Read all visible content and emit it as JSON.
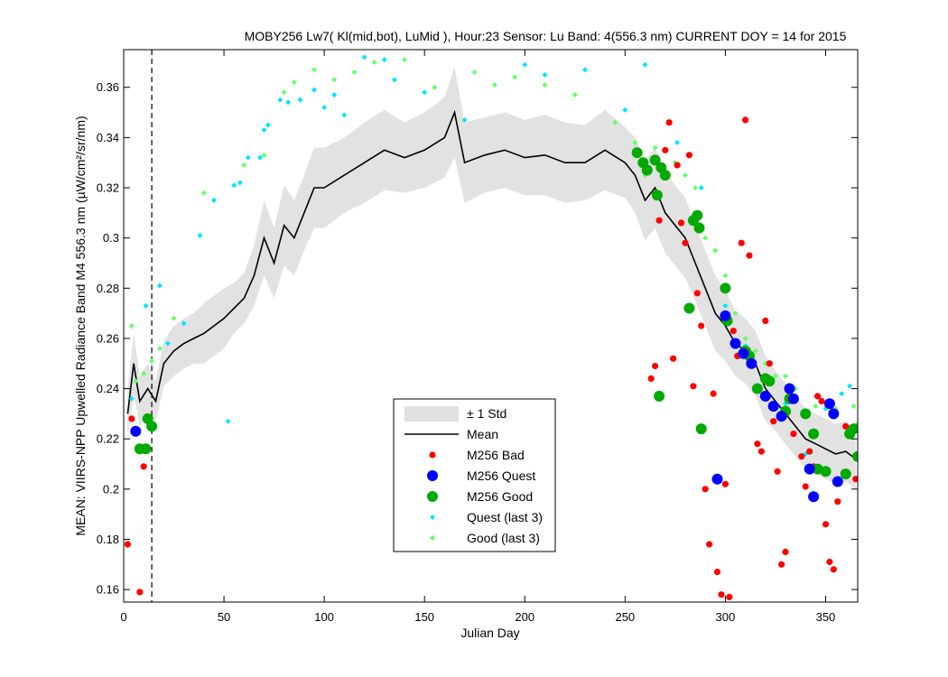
{
  "chart_data": {
    "type": "scatter",
    "title": "MOBY256   Lw7( Kl(mid,bot), LuMid ),   Hour:23 Sensor: Lu Band: 4(556.3 nm)   CURRENT DOY = 14 for 2015",
    "xlabel": "Julian Day",
    "ylabel": "MEAN: VIIRS-NPP Upwelled Radiance Band M4 556.3 nm (µW/cm²/sr/nm)",
    "xlim": [
      0,
      366
    ],
    "ylim": [
      0.155,
      0.375
    ],
    "x_ticks": [
      0,
      50,
      100,
      150,
      200,
      250,
      300,
      350
    ],
    "y_ticks": [
      0.16,
      0.18,
      0.2,
      0.22,
      0.24,
      0.26,
      0.28,
      0.3,
      0.32,
      0.34,
      0.36
    ],
    "y_tick_labels": [
      "0.16",
      "0.18",
      "0.2",
      "0.22",
      "0.24",
      "0.26",
      "0.28",
      "0.3",
      "0.32",
      "0.34",
      "0.36"
    ],
    "current_doy": 14,
    "grid": false,
    "legend_position": "lower-center",
    "legend": [
      {
        "label": "± 1 Std",
        "kind": "band",
        "color": "#e0e0e0"
      },
      {
        "label": "Mean",
        "kind": "line",
        "color": "#000000"
      },
      {
        "label": "M256 Bad",
        "kind": "dot",
        "color": "#ff0000"
      },
      {
        "label": "M256 Quest",
        "kind": "bigdot",
        "color": "#0000ff"
      },
      {
        "label": "M256 Good",
        "kind": "bigdot",
        "color": "#00aa00"
      },
      {
        "label": "Quest (last 3)",
        "kind": "diamond",
        "color": "#00e5ff"
      },
      {
        "label": "Good (last 3)",
        "kind": "diamond",
        "color": "#66ff66"
      }
    ],
    "mean": {
      "x": [
        2,
        5,
        8,
        12,
        16,
        20,
        25,
        30,
        35,
        40,
        45,
        50,
        55,
        60,
        65,
        70,
        75,
        80,
        85,
        90,
        95,
        100,
        110,
        120,
        130,
        140,
        150,
        160,
        165,
        170,
        180,
        190,
        200,
        210,
        220,
        230,
        240,
        250,
        255,
        260,
        265,
        270,
        275,
        280,
        285,
        290,
        295,
        300,
        305,
        310,
        315,
        320,
        325,
        330,
        335,
        340,
        345,
        350,
        355,
        360,
        365
      ],
      "y": [
        0.23,
        0.25,
        0.235,
        0.24,
        0.235,
        0.25,
        0.255,
        0.258,
        0.26,
        0.262,
        0.265,
        0.268,
        0.272,
        0.276,
        0.285,
        0.3,
        0.29,
        0.305,
        0.3,
        0.31,
        0.32,
        0.32,
        0.325,
        0.33,
        0.335,
        0.332,
        0.335,
        0.34,
        0.35,
        0.33,
        0.333,
        0.335,
        0.332,
        0.333,
        0.33,
        0.33,
        0.335,
        0.33,
        0.325,
        0.315,
        0.32,
        0.31,
        0.305,
        0.3,
        0.29,
        0.28,
        0.27,
        0.265,
        0.258,
        0.255,
        0.25,
        0.24,
        0.235,
        0.23,
        0.225,
        0.22,
        0.218,
        0.216,
        0.214,
        0.215,
        0.212
      ],
      "std": [
        0.01,
        0.012,
        0.01,
        0.01,
        0.008,
        0.009,
        0.01,
        0.01,
        0.01,
        0.012,
        0.012,
        0.012,
        0.01,
        0.01,
        0.012,
        0.015,
        0.014,
        0.016,
        0.015,
        0.015,
        0.016,
        0.016,
        0.015,
        0.016,
        0.016,
        0.014,
        0.015,
        0.016,
        0.018,
        0.016,
        0.015,
        0.015,
        0.015,
        0.016,
        0.016,
        0.015,
        0.016,
        0.014,
        0.015,
        0.016,
        0.016,
        0.016,
        0.016,
        0.016,
        0.015,
        0.015,
        0.015,
        0.014,
        0.013,
        0.013,
        0.013,
        0.013,
        0.012,
        0.012,
        0.012,
        0.012,
        0.012,
        0.012,
        0.012,
        0.012,
        0.012
      ]
    },
    "series": [
      {
        "name": "M256 Bad",
        "points": [
          [
            2,
            0.178
          ],
          [
            4,
            0.228
          ],
          [
            8,
            0.159
          ],
          [
            10,
            0.209
          ],
          [
            263,
            0.244
          ],
          [
            265,
            0.249
          ],
          [
            267,
            0.307
          ],
          [
            270,
            0.335
          ],
          [
            272,
            0.346
          ],
          [
            274,
            0.252
          ],
          [
            276,
            0.329
          ],
          [
            278,
            0.306
          ],
          [
            280,
            0.298
          ],
          [
            282,
            0.333
          ],
          [
            284,
            0.241
          ],
          [
            286,
            0.278
          ],
          [
            288,
            0.265
          ],
          [
            290,
            0.2
          ],
          [
            292,
            0.178
          ],
          [
            294,
            0.238
          ],
          [
            296,
            0.167
          ],
          [
            298,
            0.158
          ],
          [
            300,
            0.202
          ],
          [
            302,
            0.157
          ],
          [
            304,
            0.263
          ],
          [
            306,
            0.253
          ],
          [
            308,
            0.298
          ],
          [
            310,
            0.347
          ],
          [
            312,
            0.293
          ],
          [
            314,
            0.25
          ],
          [
            316,
            0.218
          ],
          [
            318,
            0.215
          ],
          [
            320,
            0.267
          ],
          [
            322,
            0.25
          ],
          [
            324,
            0.227
          ],
          [
            326,
            0.207
          ],
          [
            328,
            0.17
          ],
          [
            330,
            0.175
          ],
          [
            334,
            0.222
          ],
          [
            338,
            0.213
          ],
          [
            340,
            0.201
          ],
          [
            342,
            0.215
          ],
          [
            344,
            0.209
          ],
          [
            346,
            0.237
          ],
          [
            348,
            0.235
          ],
          [
            350,
            0.186
          ],
          [
            352,
            0.171
          ],
          [
            354,
            0.168
          ],
          [
            356,
            0.195
          ],
          [
            360,
            0.225
          ],
          [
            365,
            0.204
          ]
        ]
      },
      {
        "name": "M256 Quest",
        "points": [
          [
            6,
            0.223
          ],
          [
            296,
            0.204
          ],
          [
            300,
            0.269
          ],
          [
            305,
            0.258
          ],
          [
            309,
            0.254
          ],
          [
            313,
            0.25
          ],
          [
            320,
            0.237
          ],
          [
            324,
            0.233
          ],
          [
            328,
            0.229
          ],
          [
            332,
            0.24
          ],
          [
            334,
            0.236
          ],
          [
            342,
            0.208
          ],
          [
            344,
            0.197
          ],
          [
            352,
            0.234
          ],
          [
            354,
            0.23
          ],
          [
            356,
            0.203
          ]
        ]
      },
      {
        "name": "M256 Good",
        "points": [
          [
            8,
            0.216
          ],
          [
            11,
            0.216
          ],
          [
            12,
            0.228
          ],
          [
            14,
            0.225
          ],
          [
            256,
            0.334
          ],
          [
            259,
            0.33
          ],
          [
            261,
            0.327
          ],
          [
            265,
            0.331
          ],
          [
            268,
            0.328
          ],
          [
            270,
            0.325
          ],
          [
            266,
            0.317
          ],
          [
            267,
            0.237
          ],
          [
            282,
            0.272
          ],
          [
            284,
            0.307
          ],
          [
            286,
            0.309
          ],
          [
            287,
            0.304
          ],
          [
            288,
            0.224
          ],
          [
            300,
            0.28
          ],
          [
            301,
            0.267
          ],
          [
            310,
            0.255
          ],
          [
            312,
            0.253
          ],
          [
            316,
            0.24
          ],
          [
            320,
            0.244
          ],
          [
            322,
            0.243
          ],
          [
            324,
            0.233
          ],
          [
            330,
            0.231
          ],
          [
            332,
            0.236
          ],
          [
            340,
            0.23
          ],
          [
            344,
            0.222
          ],
          [
            346,
            0.208
          ],
          [
            350,
            0.207
          ],
          [
            360,
            0.206
          ],
          [
            362,
            0.222
          ],
          [
            364,
            0.224
          ],
          [
            366,
            0.213
          ]
        ]
      },
      {
        "name": "Quest (last 3)",
        "points": [
          [
            4,
            0.236
          ],
          [
            11,
            0.273
          ],
          [
            18,
            0.281
          ],
          [
            22,
            0.258
          ],
          [
            30,
            0.266
          ],
          [
            38,
            0.301
          ],
          [
            45,
            0.315
          ],
          [
            55,
            0.321
          ],
          [
            58,
            0.322
          ],
          [
            62,
            0.332
          ],
          [
            68,
            0.332
          ],
          [
            70,
            0.343
          ],
          [
            72,
            0.345
          ],
          [
            78,
            0.355
          ],
          [
            82,
            0.354
          ],
          [
            88,
            0.355
          ],
          [
            95,
            0.359
          ],
          [
            100,
            0.352
          ],
          [
            105,
            0.357
          ],
          [
            110,
            0.349
          ],
          [
            120,
            0.372
          ],
          [
            130,
            0.371
          ],
          [
            135,
            0.363
          ],
          [
            150,
            0.358
          ],
          [
            170,
            0.347
          ],
          [
            200,
            0.369
          ],
          [
            210,
            0.365
          ],
          [
            230,
            0.367
          ],
          [
            250,
            0.351
          ],
          [
            260,
            0.369
          ],
          [
            276,
            0.338
          ],
          [
            288,
            0.32
          ],
          [
            300,
            0.273
          ],
          [
            310,
            0.257
          ],
          [
            330,
            0.234
          ],
          [
            340,
            0.214
          ],
          [
            350,
            0.232
          ],
          [
            358,
            0.238
          ],
          [
            362,
            0.241
          ],
          [
            52,
            0.227
          ]
        ]
      },
      {
        "name": "Good (last 3)",
        "points": [
          [
            4,
            0.265
          ],
          [
            6,
            0.243
          ],
          [
            10,
            0.246
          ],
          [
            14,
            0.251
          ],
          [
            18,
            0.256
          ],
          [
            25,
            0.268
          ],
          [
            40,
            0.318
          ],
          [
            60,
            0.329
          ],
          [
            70,
            0.333
          ],
          [
            80,
            0.358
          ],
          [
            85,
            0.362
          ],
          [
            95,
            0.367
          ],
          [
            105,
            0.363
          ],
          [
            115,
            0.366
          ],
          [
            125,
            0.37
          ],
          [
            140,
            0.371
          ],
          [
            155,
            0.36
          ],
          [
            175,
            0.366
          ],
          [
            185,
            0.361
          ],
          [
            195,
            0.364
          ],
          [
            210,
            0.361
          ],
          [
            225,
            0.357
          ],
          [
            245,
            0.346
          ],
          [
            255,
            0.338
          ],
          [
            260,
            0.325
          ],
          [
            265,
            0.336
          ],
          [
            270,
            0.335
          ],
          [
            275,
            0.33
          ],
          [
            280,
            0.325
          ],
          [
            285,
            0.32
          ],
          [
            290,
            0.3
          ],
          [
            295,
            0.295
          ],
          [
            300,
            0.285
          ],
          [
            305,
            0.27
          ],
          [
            310,
            0.26
          ],
          [
            315,
            0.255
          ],
          [
            320,
            0.25
          ],
          [
            325,
            0.245
          ],
          [
            330,
            0.245
          ],
          [
            335,
            0.24
          ],
          [
            345,
            0.233
          ],
          [
            355,
            0.232
          ],
          [
            364,
            0.233
          ],
          [
            366,
            0.226
          ]
        ]
      }
    ]
  }
}
